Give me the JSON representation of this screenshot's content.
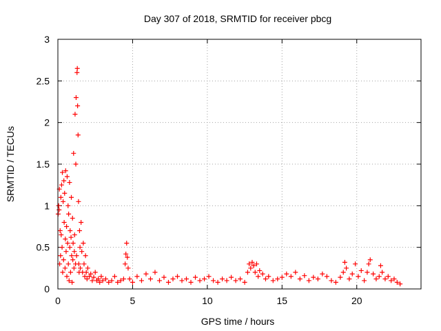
{
  "chart_data": {
    "type": "scatter",
    "title": "Day 307 of 2018, SRMTID for receiver pbcg",
    "xlabel": "GPS time / hours",
    "ylabel": "SRMTID / TECUs",
    "xlim": [
      0,
      24.3
    ],
    "ylim": [
      0,
      3
    ],
    "xticks": [
      0,
      5,
      10,
      15,
      20
    ],
    "xtick_labels": [
      "0",
      "5",
      "10",
      "15",
      "20"
    ],
    "yticks": [
      0,
      0.5,
      1,
      1.5,
      2,
      2.5,
      3
    ],
    "ytick_labels": [
      "0",
      "0.5",
      "1",
      "1.5",
      "2",
      "2.5",
      "3"
    ],
    "grid": true,
    "marker": "+",
    "color": "#ff0000",
    "series": [
      {
        "name": "SRMTID",
        "x": [
          0.02,
          0.05,
          0.08,
          0.1,
          0.12,
          0.15,
          0.18,
          0.2,
          0.22,
          0.25,
          0.28,
          0.3,
          0.32,
          0.35,
          0.38,
          0.4,
          0.42,
          0.45,
          0.48,
          0.5,
          0.52,
          0.55,
          0.58,
          0.6,
          0.62,
          0.65,
          0.68,
          0.7,
          0.72,
          0.75,
          0.78,
          0.8,
          0.82,
          0.85,
          0.88,
          0.9,
          0.92,
          0.95,
          0.98,
          1.0,
          1.02,
          1.05,
          1.08,
          1.1,
          1.12,
          1.15,
          1.18,
          1.2,
          1.22,
          1.25,
          1.28,
          1.3,
          1.32,
          1.35,
          1.38,
          1.4,
          1.42,
          1.45,
          1.48,
          1.5,
          1.55,
          1.6,
          1.65,
          1.7,
          1.75,
          1.8,
          1.85,
          1.9,
          1.95,
          2.0,
          2.1,
          2.2,
          2.3,
          2.4,
          2.5,
          2.6,
          2.7,
          2.8,
          2.9,
          3.0,
          3.2,
          3.4,
          3.6,
          3.8,
          4.0,
          4.2,
          4.4,
          4.5,
          4.55,
          4.6,
          4.65,
          4.7,
          4.8,
          5.0,
          5.3,
          5.6,
          5.9,
          6.2,
          6.5,
          6.8,
          7.1,
          7.4,
          7.7,
          8.0,
          8.3,
          8.6,
          8.9,
          9.2,
          9.5,
          9.8,
          10.1,
          10.4,
          10.7,
          11.0,
          11.3,
          11.6,
          11.9,
          12.2,
          12.5,
          12.7,
          12.8,
          12.9,
          13.0,
          13.1,
          13.2,
          13.3,
          13.4,
          13.5,
          13.7,
          13.9,
          14.1,
          14.4,
          14.7,
          15.0,
          15.3,
          15.6,
          15.9,
          16.2,
          16.5,
          16.8,
          17.1,
          17.4,
          17.7,
          18.0,
          18.3,
          18.6,
          18.9,
          19.1,
          19.2,
          19.3,
          19.5,
          19.7,
          19.9,
          20.1,
          20.3,
          20.5,
          20.7,
          20.8,
          20.9,
          21.1,
          21.3,
          21.5,
          21.6,
          21.7,
          21.9,
          22.1,
          22.3,
          22.5,
          22.7,
          22.9
        ],
        "y": [
          0.9,
          1.0,
          0.95,
          1.2,
          0.3,
          0.7,
          0.4,
          1.1,
          0.65,
          1.25,
          0.5,
          1.4,
          0.2,
          1.05,
          0.35,
          1.3,
          0.8,
          1.15,
          0.25,
          0.6,
          1.42,
          0.45,
          0.75,
          0.15,
          1.35,
          0.55,
          1.0,
          0.3,
          0.9,
          0.1,
          1.28,
          0.5,
          0.7,
          0.2,
          0.62,
          1.1,
          0.4,
          0.08,
          0.85,
          0.35,
          0.55,
          1.63,
          0.25,
          0.45,
          0.65,
          2.1,
          0.3,
          1.5,
          2.3,
          0.4,
          2.6,
          2.65,
          2.2,
          1.85,
          1.05,
          0.3,
          0.2,
          0.7,
          0.5,
          0.25,
          0.8,
          0.45,
          0.2,
          0.55,
          0.3,
          0.15,
          0.4,
          0.2,
          0.12,
          0.25,
          0.15,
          0.18,
          0.1,
          0.14,
          0.2,
          0.1,
          0.12,
          0.08,
          0.15,
          0.1,
          0.12,
          0.08,
          0.1,
          0.15,
          0.08,
          0.1,
          0.12,
          0.3,
          0.42,
          0.55,
          0.38,
          0.25,
          0.12,
          0.08,
          0.15,
          0.1,
          0.18,
          0.12,
          0.2,
          0.1,
          0.14,
          0.08,
          0.12,
          0.15,
          0.1,
          0.12,
          0.08,
          0.14,
          0.1,
          0.12,
          0.15,
          0.1,
          0.08,
          0.12,
          0.1,
          0.14,
          0.1,
          0.12,
          0.08,
          0.2,
          0.3,
          0.25,
          0.32,
          0.28,
          0.2,
          0.3,
          0.15,
          0.22,
          0.18,
          0.12,
          0.15,
          0.1,
          0.12,
          0.14,
          0.18,
          0.15,
          0.2,
          0.12,
          0.16,
          0.1,
          0.14,
          0.12,
          0.18,
          0.15,
          0.1,
          0.08,
          0.14,
          0.2,
          0.32,
          0.25,
          0.12,
          0.18,
          0.3,
          0.15,
          0.22,
          0.1,
          0.2,
          0.3,
          0.35,
          0.18,
          0.12,
          0.15,
          0.28,
          0.2,
          0.12,
          0.15,
          0.1,
          0.12,
          0.08,
          0.06
        ]
      }
    ]
  }
}
